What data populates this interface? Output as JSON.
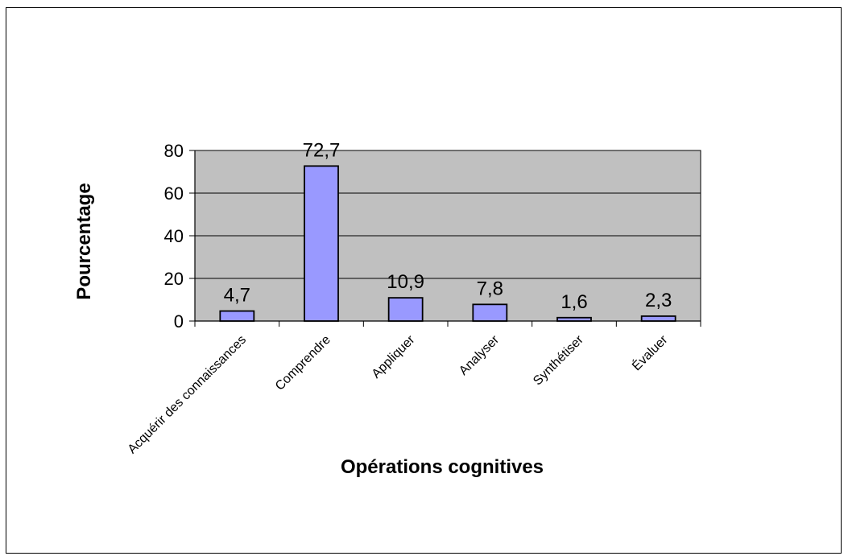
{
  "chart_data": {
    "type": "bar",
    "categories": [
      "Acquérir des connaissances",
      "Comprendre",
      "Appliquer",
      "Analyser",
      "Synthétiser",
      "Évaluer"
    ],
    "values": [
      4.7,
      72.7,
      10.9,
      7.8,
      1.6,
      2.3
    ],
    "data_labels": [
      "4,7",
      "72,7",
      "10,9",
      "7,8",
      "1,6",
      "2,3"
    ],
    "title": "",
    "xlabel": "Opérations cognitives",
    "ylabel": "Pourcentage",
    "ylim": [
      0,
      80
    ],
    "yticks": [
      0,
      20,
      40,
      60,
      80
    ],
    "grid": true,
    "legend": "none",
    "colors": {
      "bar_fill": "#9999ff",
      "bar_stroke": "#000000",
      "plot_background": "#c0c0c0",
      "gridline": "#000000"
    }
  }
}
